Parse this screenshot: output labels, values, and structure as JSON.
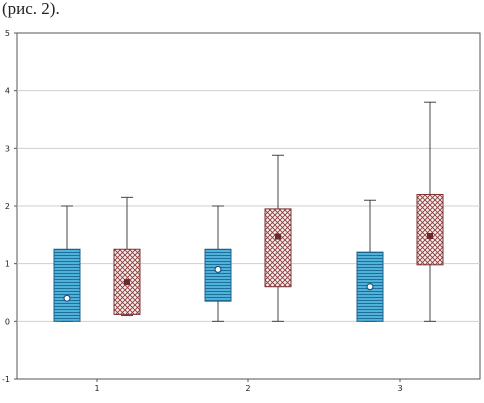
{
  "caption": "(рис. 2).",
  "chart_data": {
    "type": "box",
    "ylim": [
      -1,
      5
    ],
    "yticks": [
      -1,
      0,
      1,
      2,
      3,
      4,
      5
    ],
    "categories": [
      "1",
      "2",
      "3"
    ],
    "grid": "horizontal",
    "series": [
      {
        "pattern": "horizontal-lines",
        "fill": "#4fb3d9",
        "stroke": "#1f5f8a",
        "boxes": [
          {
            "category": "1",
            "min": 0,
            "q1": 0,
            "median": 0.4,
            "q3": 1.25,
            "max": 2.0
          },
          {
            "category": "2",
            "min": 0,
            "q1": 0.35,
            "median": 0.9,
            "q3": 1.25,
            "max": 2.0
          },
          {
            "category": "3",
            "min": 0,
            "q1": 0,
            "median": 0.6,
            "q3": 1.2,
            "max": 2.1
          }
        ]
      },
      {
        "pattern": "crosshatch",
        "fill": "#ffffff",
        "stroke": "#7a3030",
        "boxes": [
          {
            "category": "1",
            "min": 0.1,
            "q1": 0.12,
            "median": 0.68,
            "q3": 1.25,
            "max": 2.15
          },
          {
            "category": "2",
            "min": 0,
            "q1": 0.6,
            "median": 1.47,
            "q3": 1.95,
            "max": 2.88
          },
          {
            "category": "3",
            "min": 0,
            "q1": 0.98,
            "median": 1.48,
            "q3": 2.2,
            "max": 3.8
          }
        ]
      }
    ]
  }
}
